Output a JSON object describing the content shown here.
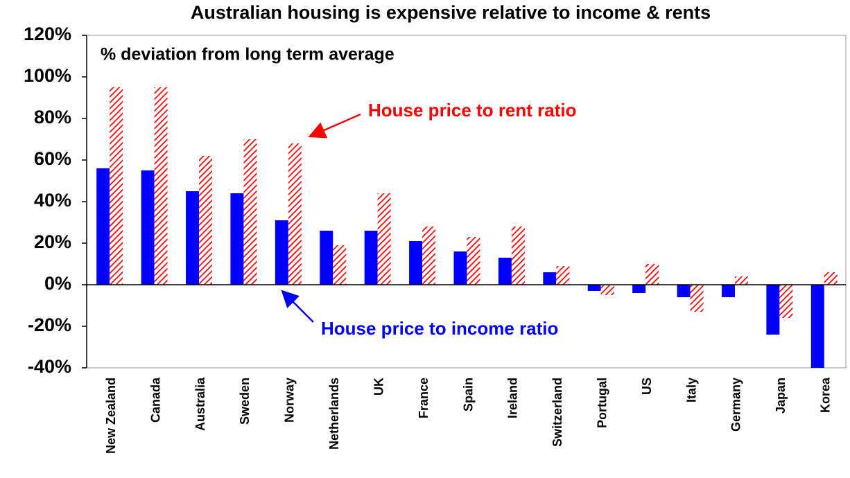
{
  "chart_data": {
    "type": "bar",
    "title": "Australian housing is expensive relative to income & rents",
    "subtitle": "% deviation from long term average",
    "categories": [
      "New Zealand",
      "Canada",
      "Australia",
      "Sweden",
      "Norway",
      "Netherlands",
      "UK",
      "France",
      "Spain",
      "Ireland",
      "Switzerland",
      "Portugal",
      "US",
      "Italy",
      "Germany",
      "Japan",
      "Korea"
    ],
    "series": [
      {
        "name": "House price to income ratio",
        "color": "#0000ff",
        "values": [
          56,
          55,
          45,
          44,
          31,
          26,
          26,
          21,
          16,
          13,
          6,
          -3,
          -4,
          -6,
          -6,
          -24,
          -40
        ]
      },
      {
        "name": "House price to rent ratio",
        "color": "#ff0000",
        "values": [
          95,
          95,
          62,
          70,
          68,
          19,
          44,
          28,
          23,
          28,
          9,
          -5,
          10,
          -13,
          4,
          -16,
          6
        ]
      }
    ],
    "ylim": [
      -40,
      120
    ],
    "yticks": [
      {
        "value": -40,
        "label": "-40%"
      },
      {
        "value": -20,
        "label": "-20%"
      },
      {
        "value": 0,
        "label": "0%"
      },
      {
        "value": 20,
        "label": "20%"
      },
      {
        "value": 40,
        "label": "40%"
      },
      {
        "value": 60,
        "label": "60%"
      },
      {
        "value": 80,
        "label": "80%"
      },
      {
        "value": 100,
        "label": "100%"
      },
      {
        "value": 120,
        "label": "120%"
      }
    ],
    "grid": false
  }
}
